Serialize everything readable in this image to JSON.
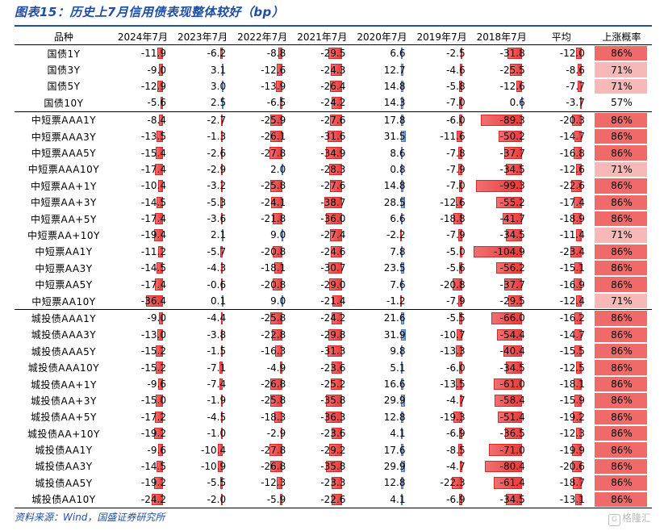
{
  "title": "图表15：历史上7月信用债表现整体较好（bp）",
  "source": "资料来源：Wind，国盛证券研究所",
  "watermark": "格隆汇",
  "colors": {
    "negative_bar": "#e83b3b",
    "positive_bar": "#5e8fd4",
    "prob_high": "#f06a6a",
    "prob_mid": "#f7b8b8",
    "prob_low": "#ffffff",
    "accent": "#1f4ea3"
  },
  "table": {
    "headers": [
      "品种",
      "2024年7月",
      "2023年7月",
      "2022年7月",
      "2021年7月",
      "2020年7月",
      "2019年7月",
      "2018年7月",
      "平均",
      "上涨概率"
    ],
    "bar_max_abs": 104.9,
    "rows": [
      {
        "name": "国债1Y",
        "values": [
          -11.9,
          -6.2,
          -8.8,
          -29.5,
          6.6,
          -2.5,
          -31.8,
          -12.0
        ],
        "prob": "86%",
        "group_start": true
      },
      {
        "name": "国债3Y",
        "values": [
          -9.0,
          3.1,
          -12.6,
          -24.3,
          12.7,
          -4.6,
          -25.5,
          -8.6
        ],
        "prob": "71%"
      },
      {
        "name": "国债5Y",
        "values": [
          -12.9,
          3.0,
          -13.9,
          -26.4,
          14.8,
          -5.8,
          -12.6,
          -7.7
        ],
        "prob": "71%"
      },
      {
        "name": "国债10Y",
        "values": [
          -5.6,
          2.5,
          -6.5,
          -24.2,
          14.3,
          -7.0,
          0.6,
          -3.7
        ],
        "prob": "57%"
      },
      {
        "name": "中短票AAA1Y",
        "values": [
          -8.4,
          -2.7,
          -25.9,
          -27.6,
          17.8,
          -6.0,
          -89.3,
          -20.3
        ],
        "prob": "86%",
        "group_start": true
      },
      {
        "name": "中短票AAA3Y",
        "values": [
          -13.5,
          -1.3,
          -26.1,
          -31.6,
          31.5,
          -11.6,
          -50.2,
          -14.7
        ],
        "prob": "86%"
      },
      {
        "name": "中短票AAA5Y",
        "values": [
          -15.4,
          -2.6,
          -27.8,
          -34.9,
          8.6,
          -7.8,
          -37.7,
          -16.8
        ],
        "prob": "86%"
      },
      {
        "name": "中短票AAA10Y",
        "values": [
          -17.4,
          -2.9,
          2.0,
          -28.3,
          0.8,
          -7.9,
          -34.5,
          -12.6
        ],
        "prob": "71%"
      },
      {
        "name": "中短票AA+1Y",
        "values": [
          -10.4,
          -3.2,
          -25.8,
          -27.6,
          14.8,
          -7.0,
          -99.3,
          -22.6
        ],
        "prob": "86%"
      },
      {
        "name": "中短票AA+3Y",
        "values": [
          -14.5,
          -5.3,
          -24.1,
          -38.7,
          28.5,
          -12.6,
          -55.2,
          -17.4
        ],
        "prob": "86%"
      },
      {
        "name": "中短票AA+5Y",
        "values": [
          -17.4,
          -3.6,
          -21.8,
          -36.0,
          6.6,
          -18.8,
          -41.7,
          -18.9
        ],
        "prob": "86%"
      },
      {
        "name": "中短票AA+10Y",
        "values": [
          -19.4,
          2.1,
          9.0,
          -27.4,
          -2.2,
          -7.9,
          -34.5,
          -11.4
        ],
        "prob": "71%"
      },
      {
        "name": "中短票AA1Y",
        "values": [
          -11.2,
          -5.7,
          -20.8,
          -24.6,
          7.8,
          -5.0,
          -104.9,
          -23.4
        ],
        "prob": "86%"
      },
      {
        "name": "中短票AA3Y",
        "values": [
          -14.5,
          -4.3,
          -18.1,
          -30.7,
          23.5,
          -5.6,
          -56.2,
          -15.1
        ],
        "prob": "86%"
      },
      {
        "name": "中短票AA5Y",
        "values": [
          -17.4,
          -0.6,
          -20.8,
          -29.0,
          7.6,
          -20.8,
          -37.7,
          -16.9
        ],
        "prob": "86%"
      },
      {
        "name": "中短票AA10Y",
        "values": [
          -36.4,
          0.1,
          9.0,
          -21.4,
          -1.2,
          -7.9,
          -29.5,
          -12.4
        ],
        "prob": "71%"
      },
      {
        "name": "城投债AAA1Y",
        "values": [
          -9.0,
          -4.4,
          -25.8,
          -24.2,
          21.6,
          -5.5,
          -66.0,
          -16.2
        ],
        "prob": "86%",
        "group_start": true
      },
      {
        "name": "城投债AAA3Y",
        "values": [
          -13.0,
          -3.8,
          -22.8,
          -29.8,
          31.9,
          -10.7,
          -54.4,
          -14.7
        ],
        "prob": "86%"
      },
      {
        "name": "城投债AAA5Y",
        "values": [
          -15.2,
          -1.5,
          -16.3,
          -31.3,
          9.8,
          -13.3,
          -40.4,
          -15.5
        ],
        "prob": "86%"
      },
      {
        "name": "城投债AAA10Y",
        "values": [
          -15.2,
          -7.1,
          -4.9,
          -23.6,
          5.1,
          -6.0,
          -34.5,
          -12.5
        ],
        "prob": "86%"
      },
      {
        "name": "城投债AA+1Y",
        "values": [
          -9.6,
          -7.4,
          -26.8,
          -25.2,
          16.6,
          -13.5,
          -61.0,
          -18.1
        ],
        "prob": "86%"
      },
      {
        "name": "城投债AA+3Y",
        "values": [
          -15.0,
          -1.9,
          -25.8,
          -35.8,
          29.9,
          -4.7,
          -58.4,
          -15.9
        ],
        "prob": "86%"
      },
      {
        "name": "城投债AA+5Y",
        "values": [
          -17.2,
          -4.5,
          -18.3,
          -36.3,
          12.8,
          -19.3,
          -51.4,
          -19.2
        ],
        "prob": "86%"
      },
      {
        "name": "城投债AA+10Y",
        "values": [
          -19.2,
          -1.0,
          -2.9,
          -23.6,
          4.1,
          -6.9,
          -36.5,
          -12.3
        ],
        "prob": "86%"
      },
      {
        "name": "城投债AA1Y",
        "values": [
          -9.6,
          -10.4,
          -27.8,
          -29.2,
          17.6,
          -8.5,
          -71.0,
          -19.9
        ],
        "prob": "86%"
      },
      {
        "name": "城投债AA3Y",
        "values": [
          -14.5,
          -10.9,
          -26.8,
          -35.8,
          29.9,
          -4.7,
          -80.4,
          -20.6
        ],
        "prob": "86%"
      },
      {
        "name": "城投债AA5Y",
        "values": [
          -19.2,
          -5.5,
          -12.3,
          -23.3,
          12.8,
          -22.3,
          -61.4,
          -18.7
        ],
        "prob": "86%"
      },
      {
        "name": "城投债AA10Y",
        "values": [
          -24.2,
          -2.0,
          -5.9,
          -22.6,
          4.1,
          -6.9,
          -34.5,
          -13.1
        ],
        "prob": "86%"
      }
    ]
  }
}
